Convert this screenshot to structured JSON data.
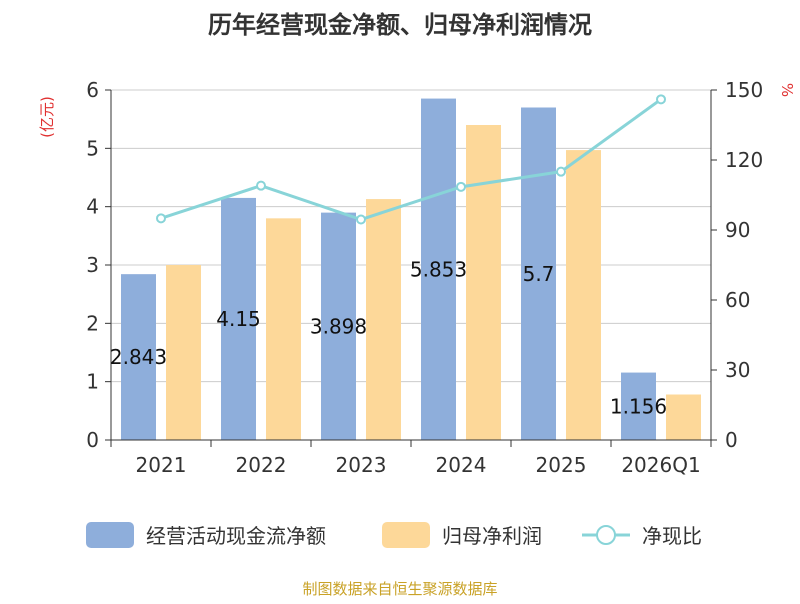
{
  "chart_data": {
    "type": "bar",
    "title": "历年经营现金净额、归母净利润情况",
    "left_axis_unit": "(亿元)",
    "right_axis_unit": "%",
    "categories": [
      "2021",
      "2022",
      "2023",
      "2024",
      "2025",
      "2026Q1"
    ],
    "y_left_lim": [
      0,
      6
    ],
    "y_left_ticks": [
      "0",
      "1",
      "2",
      "3",
      "4",
      "5",
      "6"
    ],
    "y_right_lim": [
      0,
      150
    ],
    "y_right_ticks": [
      "0",
      "30",
      "60",
      "90",
      "120",
      "150"
    ],
    "grid": true,
    "legend_position": "bottom",
    "series": [
      {
        "name": "经营活动现金流净额",
        "type": "bar",
        "axis": "left",
        "color": "#8eaedb",
        "values": [
          2.843,
          4.15,
          3.898,
          5.853,
          5.7,
          1.156
        ],
        "labels": [
          "2.843",
          "4.15",
          "3.898",
          "5.853",
          "5.7",
          "1.156"
        ]
      },
      {
        "name": "归母净利润",
        "type": "bar",
        "axis": "left",
        "color": "#fdd899",
        "values": [
          3.0,
          3.8,
          4.13,
          5.4,
          4.97,
          0.78
        ]
      },
      {
        "name": "净现比",
        "type": "line",
        "axis": "right",
        "color": "#88d4d8",
        "values": [
          95,
          109,
          94.5,
          108.5,
          115,
          146
        ]
      }
    ],
    "source_note": "制图数据来自恒生聚源数据库"
  }
}
